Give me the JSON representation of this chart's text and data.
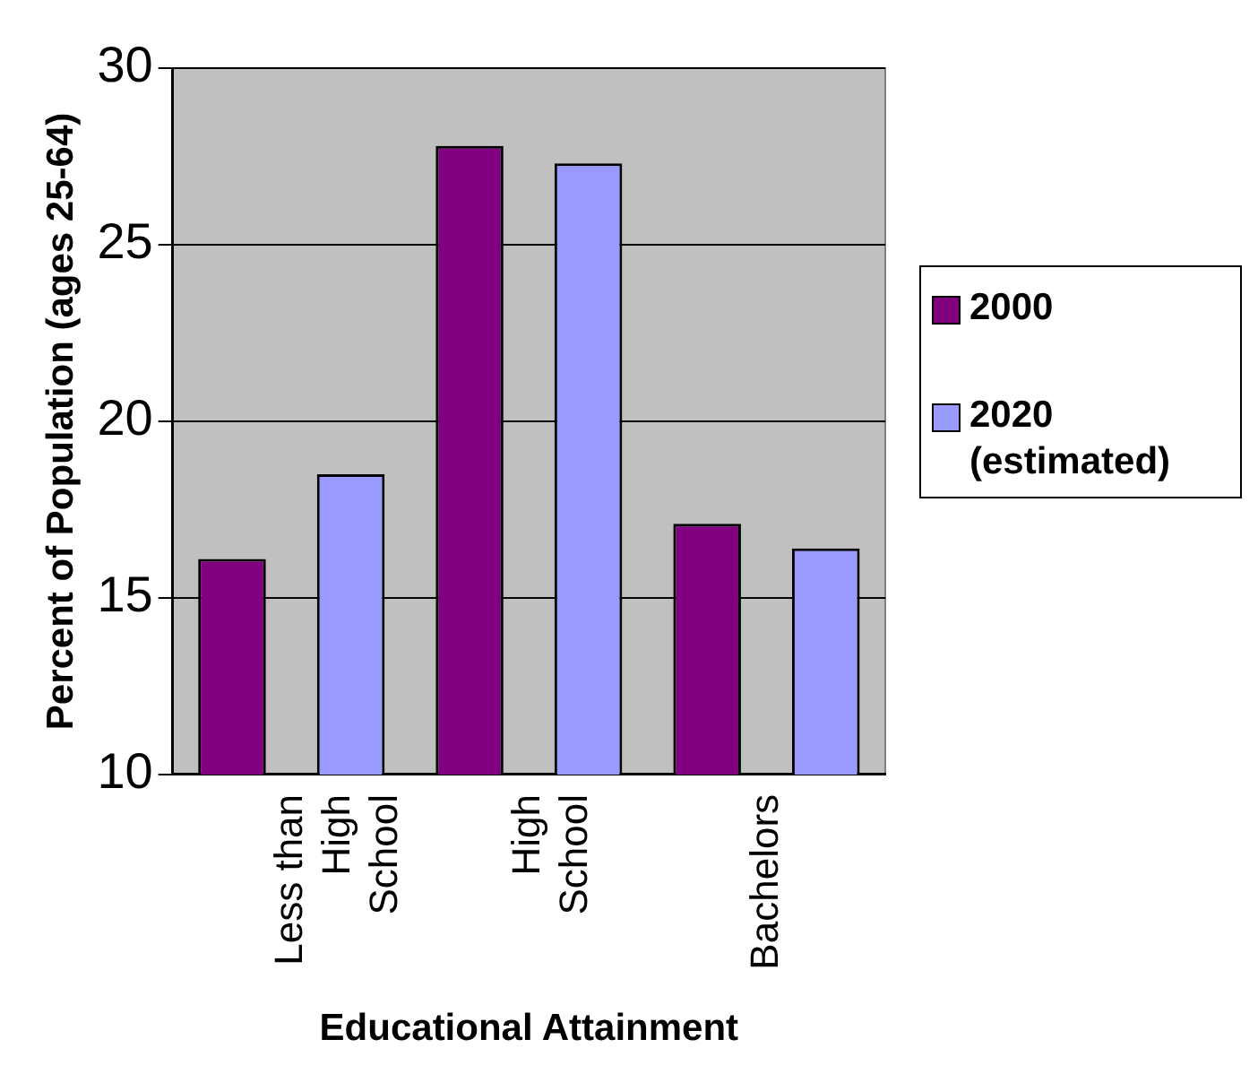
{
  "chart_data": {
    "type": "bar",
    "xlabel": "Educational Attainment",
    "ylabel": "Percent of Population (ages 25-64)",
    "categories": [
      "Less than\nHigh\nSchool",
      "High\nSchool",
      "Bachelors"
    ],
    "series": [
      {
        "name": "2000",
        "color": "#800080",
        "values": [
          16.1,
          27.8,
          17.1
        ]
      },
      {
        "name": "2020 (estimated)",
        "color": "#9999ff",
        "values": [
          18.5,
          27.3,
          16.4
        ]
      }
    ],
    "ylim": [
      10,
      30
    ],
    "yticks": [
      10,
      15,
      20,
      25,
      30
    ],
    "grid": "y",
    "legend": "right"
  }
}
